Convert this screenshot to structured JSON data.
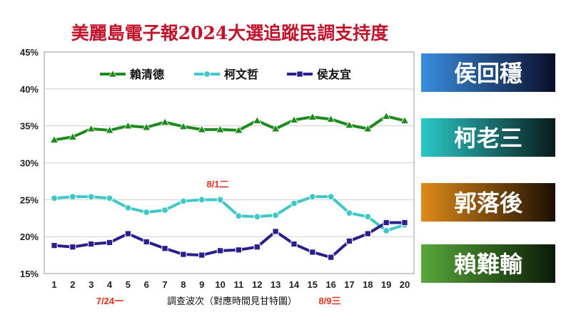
{
  "chart_data": {
    "type": "line",
    "title": "美麗島電子報2024大選追蹤民調支持度",
    "xlabel": "調查波次（對應時間見甘特圖）",
    "ylabel": "",
    "x": [
      "1",
      "2",
      "3",
      "4",
      "5",
      "6",
      "7",
      "8",
      "9",
      "10",
      "11",
      "12",
      "13",
      "14",
      "15",
      "16",
      "17",
      "18",
      "19",
      "20"
    ],
    "yticks": [
      "15%",
      "20%",
      "25%",
      "30%",
      "35%",
      "40%",
      "45%"
    ],
    "ylim": [
      15,
      45
    ],
    "grid": true,
    "legend_position": "top",
    "series": [
      {
        "name": "賴清德",
        "color": "#1c8a1c",
        "marker": "triangle",
        "values": [
          33.1,
          33.5,
          34.6,
          34.4,
          35.0,
          34.8,
          35.5,
          34.9,
          34.5,
          34.5,
          34.4,
          35.7,
          34.6,
          35.8,
          36.2,
          35.9,
          35.1,
          34.6,
          36.3,
          35.7
        ]
      },
      {
        "name": "柯文哲",
        "color": "#40c8c8",
        "marker": "circle",
        "values": [
          25.2,
          25.4,
          25.4,
          25.2,
          23.9,
          23.3,
          23.6,
          24.8,
          25.0,
          25.0,
          22.8,
          22.7,
          22.9,
          24.5,
          25.4,
          25.4,
          23.2,
          22.7,
          20.8,
          21.6
        ]
      },
      {
        "name": "侯友宜",
        "color": "#2a1e8c",
        "marker": "square",
        "values": [
          18.8,
          18.6,
          19.0,
          19.2,
          20.4,
          19.3,
          18.4,
          17.6,
          17.5,
          18.1,
          18.2,
          18.6,
          20.7,
          19.0,
          17.9,
          17.2,
          19.4,
          20.4,
          21.9,
          21.9
        ]
      }
    ],
    "annotations": [
      {
        "text": "7/24一",
        "color": "#e0301e"
      },
      {
        "text": "8/1二",
        "color": "#e0301e"
      },
      {
        "text": "8/9三",
        "color": "#e0301e"
      }
    ]
  },
  "side_panel": [
    {
      "label": "侯回穩",
      "from": "#3a8de0",
      "to": "#0a0e2a"
    },
    {
      "label": "柯老三",
      "from": "#2ac8c8",
      "to": "#0a1a1a"
    },
    {
      "label": "郭落後",
      "from": "#e08a18",
      "to": "#1a0e04"
    },
    {
      "label": "賴難輸",
      "from": "#58a83a",
      "to": "#0a1a06"
    }
  ]
}
